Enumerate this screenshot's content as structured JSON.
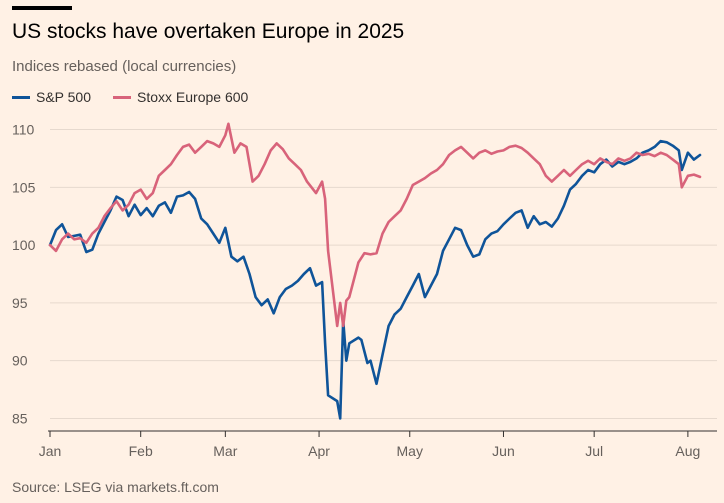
{
  "title": "US stocks have overtaken Europe in 2025",
  "subtitle": "Indices rebased (local currencies)",
  "source": "Source: LSEG via markets.ft.com",
  "colors": {
    "background": "#FFF1E5",
    "sp500": "#0F5499",
    "stoxx": "#D8637A",
    "grid": "#E6D9CE",
    "axis": "#33302E"
  },
  "legend": [
    {
      "label": "S&P 500",
      "color": "#0F5499"
    },
    {
      "label": "Stoxx Europe 600",
      "color": "#D8637A"
    }
  ],
  "chart_data": {
    "type": "line",
    "ylim": [
      84,
      111
    ],
    "xlim": [
      "2025-01-02",
      "2025-08-06"
    ],
    "yticks": [
      85,
      90,
      95,
      100,
      105,
      110
    ],
    "xticks": [
      {
        "label": "Jan",
        "date": "2025-01-02"
      },
      {
        "label": "Feb",
        "date": "2025-02-01"
      },
      {
        "label": "Mar",
        "date": "2025-03-01"
      },
      {
        "label": "Apr",
        "date": "2025-04-01"
      },
      {
        "label": "May",
        "date": "2025-05-01"
      },
      {
        "label": "Jun",
        "date": "2025-06-01"
      },
      {
        "label": "Jul",
        "date": "2025-07-01"
      },
      {
        "label": "Aug",
        "date": "2025-08-01"
      }
    ],
    "series": [
      {
        "name": "S&P 500",
        "color": "#0F5499",
        "points": [
          [
            "2025-01-02",
            100.0
          ],
          [
            "2025-01-04",
            101.3
          ],
          [
            "2025-01-06",
            101.8
          ],
          [
            "2025-01-08",
            100.7
          ],
          [
            "2025-01-10",
            100.8
          ],
          [
            "2025-01-12",
            100.9
          ],
          [
            "2025-01-14",
            99.4
          ],
          [
            "2025-01-16",
            99.6
          ],
          [
            "2025-01-18",
            101.0
          ],
          [
            "2025-01-20",
            102.0
          ],
          [
            "2025-01-22",
            103.0
          ],
          [
            "2025-01-24",
            104.2
          ],
          [
            "2025-01-26",
            103.9
          ],
          [
            "2025-01-28",
            102.5
          ],
          [
            "2025-01-30",
            103.5
          ],
          [
            "2025-02-01",
            102.6
          ],
          [
            "2025-02-03",
            103.2
          ],
          [
            "2025-02-05",
            102.5
          ],
          [
            "2025-02-07",
            103.4
          ],
          [
            "2025-02-09",
            103.7
          ],
          [
            "2025-02-11",
            102.8
          ],
          [
            "2025-02-13",
            104.2
          ],
          [
            "2025-02-15",
            104.3
          ],
          [
            "2025-02-17",
            104.6
          ],
          [
            "2025-02-19",
            104.0
          ],
          [
            "2025-02-21",
            102.3
          ],
          [
            "2025-02-23",
            101.8
          ],
          [
            "2025-02-25",
            101.0
          ],
          [
            "2025-02-27",
            100.2
          ],
          [
            "2025-03-01",
            101.5
          ],
          [
            "2025-03-03",
            99.0
          ],
          [
            "2025-03-05",
            98.6
          ],
          [
            "2025-03-07",
            99.0
          ],
          [
            "2025-03-09",
            97.5
          ],
          [
            "2025-03-11",
            95.5
          ],
          [
            "2025-03-13",
            94.8
          ],
          [
            "2025-03-15",
            95.3
          ],
          [
            "2025-03-17",
            94.1
          ],
          [
            "2025-03-19",
            95.5
          ],
          [
            "2025-03-21",
            96.2
          ],
          [
            "2025-03-23",
            96.5
          ],
          [
            "2025-03-25",
            96.9
          ],
          [
            "2025-03-27",
            97.5
          ],
          [
            "2025-03-29",
            98.0
          ],
          [
            "2025-03-31",
            96.5
          ],
          [
            "2025-04-02",
            96.8
          ],
          [
            "2025-04-03",
            91.5
          ],
          [
            "2025-04-04",
            87.0
          ],
          [
            "2025-04-07",
            86.5
          ],
          [
            "2025-04-08",
            85.0
          ],
          [
            "2025-04-09",
            93.5
          ],
          [
            "2025-04-10",
            90.0
          ],
          [
            "2025-04-11",
            91.5
          ],
          [
            "2025-04-14",
            92.0
          ],
          [
            "2025-04-15",
            91.8
          ],
          [
            "2025-04-17",
            89.8
          ],
          [
            "2025-04-18",
            90.0
          ],
          [
            "2025-04-20",
            88.0
          ],
          [
            "2025-04-22",
            90.5
          ],
          [
            "2025-04-24",
            93.0
          ],
          [
            "2025-04-26",
            94.0
          ],
          [
            "2025-04-28",
            94.5
          ],
          [
            "2025-04-30",
            95.5
          ],
          [
            "2025-05-02",
            96.5
          ],
          [
            "2025-05-04",
            97.5
          ],
          [
            "2025-05-06",
            95.5
          ],
          [
            "2025-05-08",
            96.5
          ],
          [
            "2025-05-10",
            97.5
          ],
          [
            "2025-05-12",
            99.5
          ],
          [
            "2025-05-14",
            100.5
          ],
          [
            "2025-05-16",
            101.5
          ],
          [
            "2025-05-18",
            101.3
          ],
          [
            "2025-05-20",
            100.0
          ],
          [
            "2025-05-22",
            99.0
          ],
          [
            "2025-05-24",
            99.2
          ],
          [
            "2025-05-26",
            100.5
          ],
          [
            "2025-05-28",
            101.0
          ],
          [
            "2025-05-30",
            101.2
          ],
          [
            "2025-06-01",
            101.8
          ],
          [
            "2025-06-03",
            102.3
          ],
          [
            "2025-06-05",
            102.8
          ],
          [
            "2025-06-07",
            103.0
          ],
          [
            "2025-06-09",
            101.5
          ],
          [
            "2025-06-11",
            102.5
          ],
          [
            "2025-06-13",
            101.8
          ],
          [
            "2025-06-15",
            102.0
          ],
          [
            "2025-06-17",
            101.6
          ],
          [
            "2025-06-19",
            102.3
          ],
          [
            "2025-06-21",
            103.4
          ],
          [
            "2025-06-23",
            104.8
          ],
          [
            "2025-06-25",
            105.3
          ],
          [
            "2025-06-27",
            106.0
          ],
          [
            "2025-06-29",
            106.5
          ],
          [
            "2025-07-01",
            106.3
          ],
          [
            "2025-07-03",
            107.0
          ],
          [
            "2025-07-05",
            107.4
          ],
          [
            "2025-07-07",
            106.8
          ],
          [
            "2025-07-09",
            107.2
          ],
          [
            "2025-07-11",
            107.0
          ],
          [
            "2025-07-13",
            107.2
          ],
          [
            "2025-07-15",
            107.5
          ],
          [
            "2025-07-17",
            108.0
          ],
          [
            "2025-07-19",
            108.2
          ],
          [
            "2025-07-21",
            108.5
          ],
          [
            "2025-07-23",
            109.0
          ],
          [
            "2025-07-25",
            108.9
          ],
          [
            "2025-07-27",
            108.6
          ],
          [
            "2025-07-29",
            108.2
          ],
          [
            "2025-07-30",
            106.5
          ],
          [
            "2025-08-01",
            108.0
          ],
          [
            "2025-08-03",
            107.4
          ],
          [
            "2025-08-05",
            107.8
          ]
        ]
      },
      {
        "name": "Stoxx Europe 600",
        "color": "#D8637A",
        "points": [
          [
            "2025-01-02",
            100.0
          ],
          [
            "2025-01-04",
            99.5
          ],
          [
            "2025-01-06",
            100.5
          ],
          [
            "2025-01-08",
            101.0
          ],
          [
            "2025-01-10",
            100.5
          ],
          [
            "2025-01-12",
            100.6
          ],
          [
            "2025-01-14",
            100.2
          ],
          [
            "2025-01-16",
            101.0
          ],
          [
            "2025-01-18",
            101.5
          ],
          [
            "2025-01-20",
            102.5
          ],
          [
            "2025-01-22",
            103.2
          ],
          [
            "2025-01-24",
            103.8
          ],
          [
            "2025-01-26",
            103.0
          ],
          [
            "2025-01-28",
            103.5
          ],
          [
            "2025-01-30",
            104.5
          ],
          [
            "2025-02-01",
            104.8
          ],
          [
            "2025-02-03",
            104.0
          ],
          [
            "2025-02-05",
            104.5
          ],
          [
            "2025-02-07",
            106.0
          ],
          [
            "2025-02-09",
            106.5
          ],
          [
            "2025-02-11",
            107.0
          ],
          [
            "2025-02-13",
            107.8
          ],
          [
            "2025-02-15",
            108.5
          ],
          [
            "2025-02-17",
            108.7
          ],
          [
            "2025-02-19",
            108.0
          ],
          [
            "2025-02-21",
            108.5
          ],
          [
            "2025-02-23",
            109.0
          ],
          [
            "2025-02-25",
            108.8
          ],
          [
            "2025-02-27",
            108.5
          ],
          [
            "2025-03-01",
            109.5
          ],
          [
            "2025-03-02",
            110.5
          ],
          [
            "2025-03-04",
            108.0
          ],
          [
            "2025-03-06",
            108.8
          ],
          [
            "2025-03-08",
            108.5
          ],
          [
            "2025-03-10",
            105.5
          ],
          [
            "2025-03-12",
            106.0
          ],
          [
            "2025-03-14",
            107.0
          ],
          [
            "2025-03-16",
            108.2
          ],
          [
            "2025-03-18",
            108.8
          ],
          [
            "2025-03-20",
            108.3
          ],
          [
            "2025-03-22",
            107.5
          ],
          [
            "2025-03-24",
            107.0
          ],
          [
            "2025-03-26",
            106.5
          ],
          [
            "2025-03-28",
            105.5
          ],
          [
            "2025-03-31",
            104.5
          ],
          [
            "2025-04-02",
            105.5
          ],
          [
            "2025-04-03",
            104.0
          ],
          [
            "2025-04-04",
            99.5
          ],
          [
            "2025-04-07",
            93.0
          ],
          [
            "2025-04-08",
            95.0
          ],
          [
            "2025-04-09",
            93.0
          ],
          [
            "2025-04-10",
            95.2
          ],
          [
            "2025-04-11",
            95.5
          ],
          [
            "2025-04-14",
            98.5
          ],
          [
            "2025-04-16",
            99.3
          ],
          [
            "2025-04-18",
            99.2
          ],
          [
            "2025-04-20",
            99.3
          ],
          [
            "2025-04-22",
            101.0
          ],
          [
            "2025-04-24",
            102.0
          ],
          [
            "2025-04-26",
            102.5
          ],
          [
            "2025-04-28",
            103.0
          ],
          [
            "2025-04-30",
            104.0
          ],
          [
            "2025-05-02",
            105.2
          ],
          [
            "2025-05-04",
            105.5
          ],
          [
            "2025-05-06",
            105.8
          ],
          [
            "2025-05-08",
            106.2
          ],
          [
            "2025-05-10",
            106.5
          ],
          [
            "2025-05-12",
            107.0
          ],
          [
            "2025-05-14",
            107.8
          ],
          [
            "2025-05-16",
            108.2
          ],
          [
            "2025-05-18",
            108.5
          ],
          [
            "2025-05-20",
            108.0
          ],
          [
            "2025-05-22",
            107.5
          ],
          [
            "2025-05-24",
            108.0
          ],
          [
            "2025-05-26",
            108.2
          ],
          [
            "2025-05-28",
            107.9
          ],
          [
            "2025-05-30",
            108.1
          ],
          [
            "2025-06-01",
            108.2
          ],
          [
            "2025-06-03",
            108.5
          ],
          [
            "2025-06-05",
            108.6
          ],
          [
            "2025-06-07",
            108.4
          ],
          [
            "2025-06-09",
            108.0
          ],
          [
            "2025-06-11",
            107.5
          ],
          [
            "2025-06-13",
            107.0
          ],
          [
            "2025-06-15",
            106.0
          ],
          [
            "2025-06-17",
            105.5
          ],
          [
            "2025-06-19",
            106.0
          ],
          [
            "2025-06-21",
            106.5
          ],
          [
            "2025-06-23",
            106.0
          ],
          [
            "2025-06-25",
            106.5
          ],
          [
            "2025-06-27",
            107.0
          ],
          [
            "2025-06-29",
            107.3
          ],
          [
            "2025-07-01",
            107.0
          ],
          [
            "2025-07-03",
            107.5
          ],
          [
            "2025-07-05",
            107.2
          ],
          [
            "2025-07-07",
            107.0
          ],
          [
            "2025-07-09",
            107.5
          ],
          [
            "2025-07-11",
            107.3
          ],
          [
            "2025-07-13",
            107.5
          ],
          [
            "2025-07-15",
            108.0
          ],
          [
            "2025-07-17",
            107.8
          ],
          [
            "2025-07-19",
            107.9
          ],
          [
            "2025-07-21",
            107.7
          ],
          [
            "2025-07-23",
            108.0
          ],
          [
            "2025-07-25",
            107.8
          ],
          [
            "2025-07-27",
            107.4
          ],
          [
            "2025-07-29",
            107.0
          ],
          [
            "2025-07-30",
            105.0
          ],
          [
            "2025-08-01",
            106.0
          ],
          [
            "2025-08-03",
            106.1
          ],
          [
            "2025-08-05",
            105.9
          ]
        ]
      }
    ]
  }
}
